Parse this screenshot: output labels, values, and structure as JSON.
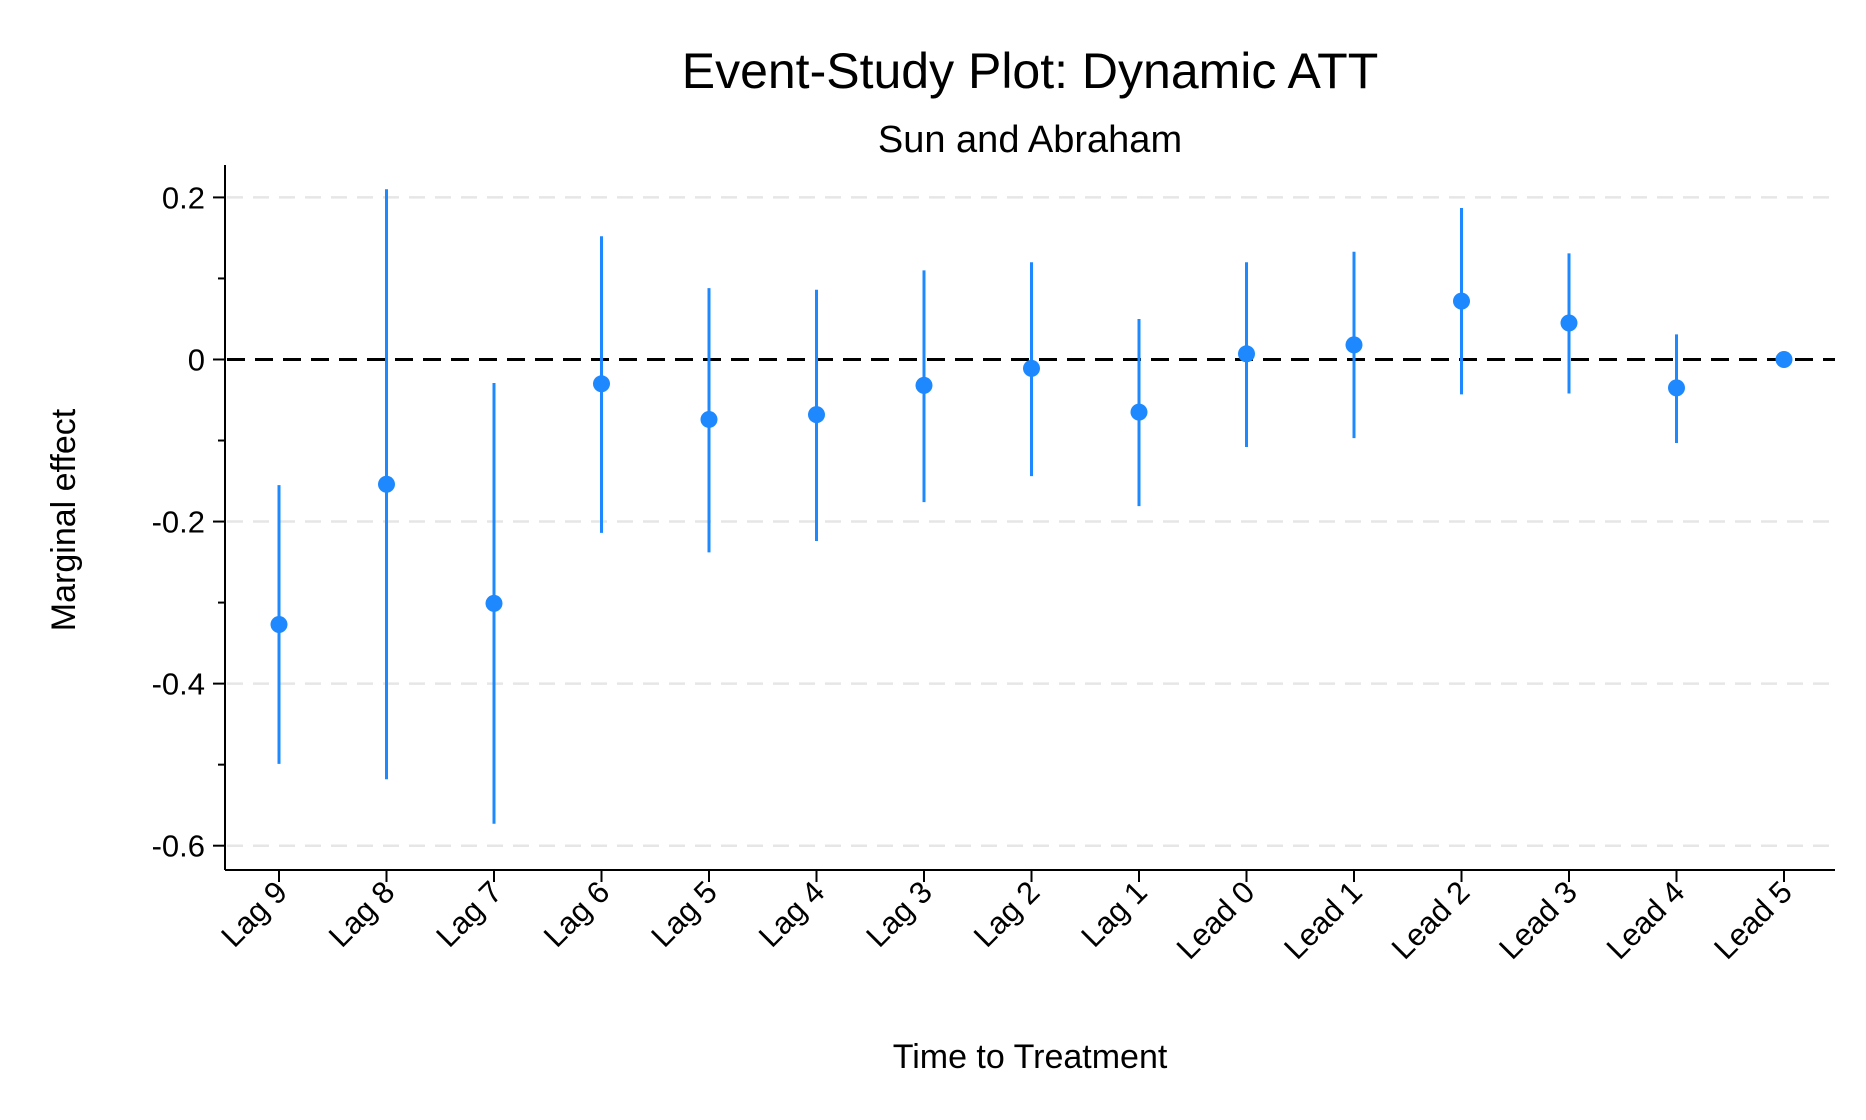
{
  "chart_data": {
    "type": "scatter",
    "title": "Event-Study Plot: Dynamic ATT",
    "subtitle": "Sun and Abraham",
    "xlabel": "Time to Treatment",
    "ylabel": "Marginal effect",
    "ylim": [
      -0.63,
      0.24
    ],
    "yticks": [
      {
        "value": 0.2,
        "label": "0.2"
      },
      {
        "value": 0,
        "label": "0"
      },
      {
        "value": -0.2,
        "label": "-0.2"
      },
      {
        "value": -0.4,
        "label": "-0.4"
      },
      {
        "value": -0.6,
        "label": "-0.6"
      }
    ],
    "yminor_ticks": [
      0.1,
      -0.1,
      -0.3,
      -0.5
    ],
    "grid": "horizontal dashed",
    "reference_line": {
      "y": 0,
      "style": "dashed",
      "color": "#000000"
    },
    "marker_color": "#1e88ff",
    "categories": [
      "Lag 9",
      "Lag 8",
      "Lag 7",
      "Lag 6",
      "Lag 5",
      "Lag 4",
      "Lag 3",
      "Lag 2",
      "Lag 1",
      "Lead 0",
      "Lead 1",
      "Lead 2",
      "Lead 3",
      "Lead 4",
      "Lead 5"
    ],
    "series": [
      {
        "values": [
          -0.327,
          -0.154,
          -0.301,
          -0.03,
          -0.074,
          -0.068,
          -0.032,
          -0.011,
          -0.065,
          0.007,
          0.018,
          0.072,
          0.045,
          -0.035,
          0.0
        ],
        "ci_lower": [
          -0.499,
          -0.518,
          -0.573,
          -0.214,
          -0.238,
          -0.224,
          -0.176,
          -0.144,
          -0.181,
          -0.108,
          -0.097,
          -0.043,
          -0.042,
          -0.103,
          0.0
        ],
        "ci_upper": [
          -0.155,
          0.21,
          -0.029,
          0.152,
          0.088,
          0.086,
          0.11,
          0.12,
          0.05,
          0.12,
          0.133,
          0.187,
          0.131,
          0.031,
          0.0
        ]
      }
    ]
  }
}
